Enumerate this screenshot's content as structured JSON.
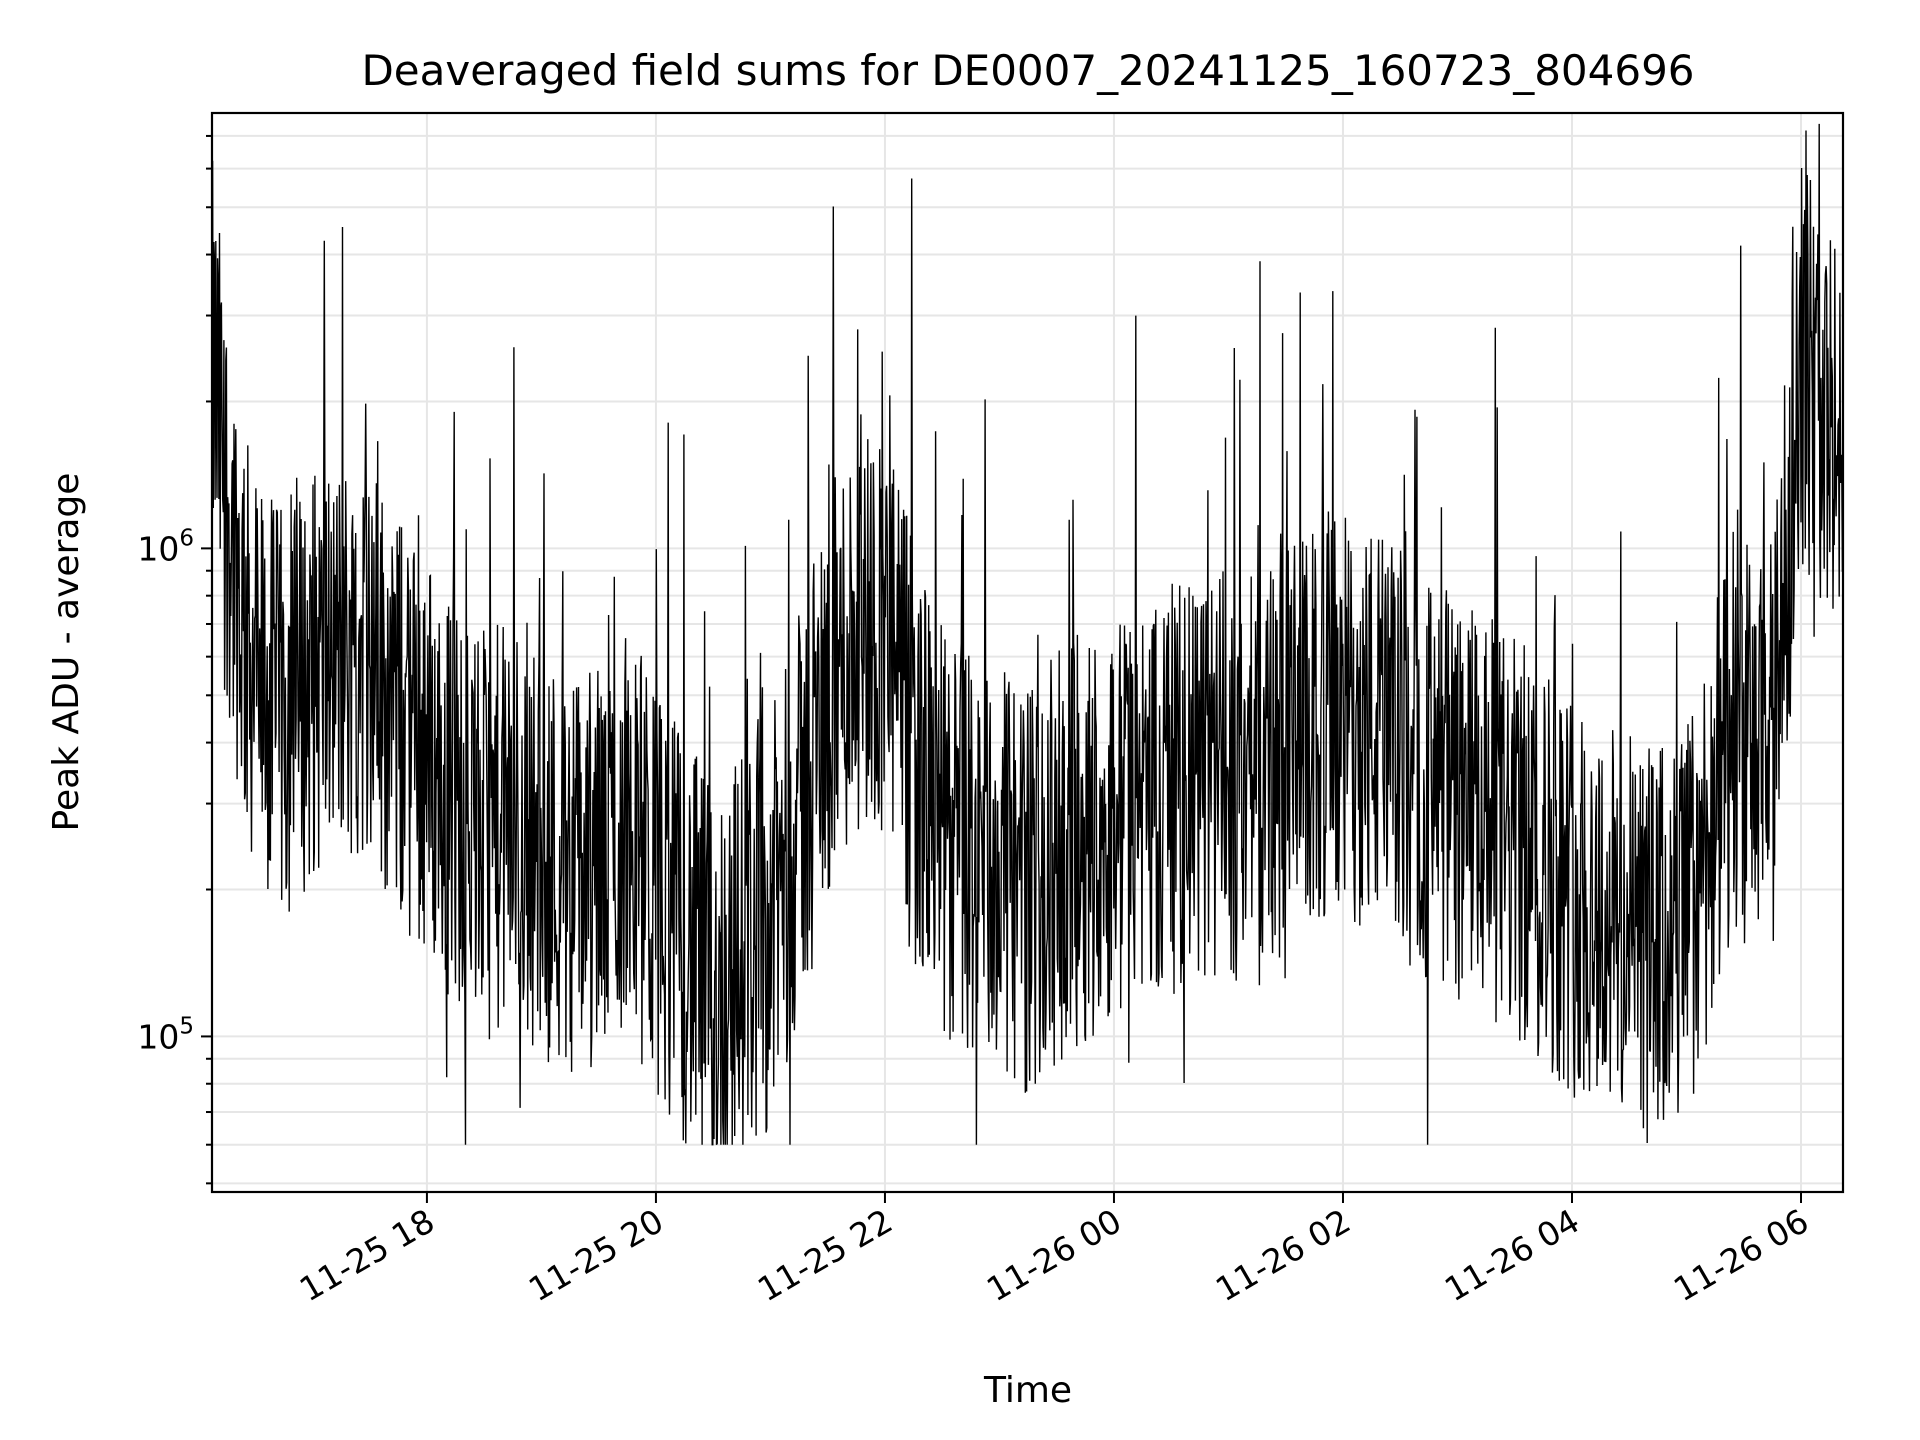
{
  "chart_data": {
    "type": "line",
    "title": "Deaveraged field sums for DE0007_20241125_160723_804696",
    "xlabel": "Time",
    "ylabel": "Peak ADU - average",
    "x_type": "datetime",
    "xlim": [
      "2024-11-25T16:07:23",
      "2024-11-26T06:22:00"
    ],
    "x_ticks": [
      {
        "value": "2024-11-25T18:00",
        "label": "11-25 18"
      },
      {
        "value": "2024-11-25T20:00",
        "label": "11-25 20"
      },
      {
        "value": "2024-11-25T22:00",
        "label": "11-25 22"
      },
      {
        "value": "2024-11-26T00:00",
        "label": "11-26 00"
      },
      {
        "value": "2024-11-26T02:00",
        "label": "11-26 02"
      },
      {
        "value": "2024-11-26T04:00",
        "label": "11-26 04"
      },
      {
        "value": "2024-11-26T06:00",
        "label": "11-26 06"
      }
    ],
    "y_scale": "log",
    "ylim": [
      48000,
      7800000
    ],
    "y_ticks": [
      {
        "value": 100000,
        "base": "10",
        "exp": "5"
      },
      {
        "value": 1000000,
        "base": "10",
        "exp": "6"
      }
    ],
    "grid": true,
    "line_color": "#000000",
    "grid_color": "#e6e6e6",
    "series": [
      {
        "x": [
          "2024-11-25T16:07",
          "2024-11-25T16:15",
          "2024-11-25T16:25",
          "2024-11-25T16:35",
          "2024-11-25T16:45",
          "2024-11-25T17:00",
          "2024-11-25T17:15",
          "2024-11-25T17:30",
          "2024-11-25T17:45",
          "2024-11-25T18:00",
          "2024-11-25T18:15",
          "2024-11-25T18:30",
          "2024-11-25T18:45",
          "2024-11-25T19:00",
          "2024-11-25T19:15",
          "2024-11-25T19:30",
          "2024-11-25T19:45",
          "2024-11-25T20:00",
          "2024-11-25T20:15",
          "2024-11-25T20:30",
          "2024-11-25T20:45",
          "2024-11-25T21:00",
          "2024-11-25T21:15",
          "2024-11-25T21:30",
          "2024-11-25T21:45",
          "2024-11-25T22:00",
          "2024-11-25T22:15",
          "2024-11-25T22:30",
          "2024-11-25T22:45",
          "2024-11-25T23:00",
          "2024-11-25T23:15",
          "2024-11-25T23:30",
          "2024-11-25T23:45",
          "2024-11-26T00:00",
          "2024-11-26T00:15",
          "2024-11-26T00:30",
          "2024-11-26T00:45",
          "2024-11-26T01:00",
          "2024-11-26T01:15",
          "2024-11-26T01:30",
          "2024-11-26T01:45",
          "2024-11-26T02:00",
          "2024-11-26T02:15",
          "2024-11-26T02:30",
          "2024-11-26T02:45",
          "2024-11-26T03:00",
          "2024-11-26T03:15",
          "2024-11-26T03:30",
          "2024-11-26T03:45",
          "2024-11-26T04:00",
          "2024-11-26T04:15",
          "2024-11-26T04:30",
          "2024-11-26T04:45",
          "2024-11-26T05:00",
          "2024-11-26T05:15",
          "2024-11-26T05:30",
          "2024-11-26T05:45",
          "2024-11-26T06:00",
          "2024-11-26T06:10",
          "2024-11-26T06:20"
        ],
        "y": [
          2500000,
          1300000,
          650000,
          500000,
          450000,
          550000,
          600000,
          600000,
          450000,
          380000,
          300000,
          260000,
          270000,
          240000,
          220000,
          220000,
          270000,
          200000,
          160000,
          120000,
          150000,
          170000,
          280000,
          480000,
          700000,
          700000,
          380000,
          260000,
          230000,
          220000,
          200000,
          230000,
          260000,
          280000,
          300000,
          320000,
          330000,
          340000,
          350000,
          380000,
          420000,
          450000,
          430000,
          380000,
          330000,
          300000,
          280000,
          250000,
          230000,
          200000,
          180000,
          160000,
          150000,
          170000,
          300000,
          400000,
          350000,
          2500000,
          2000000,
          1500000
        ]
      }
    ]
  }
}
